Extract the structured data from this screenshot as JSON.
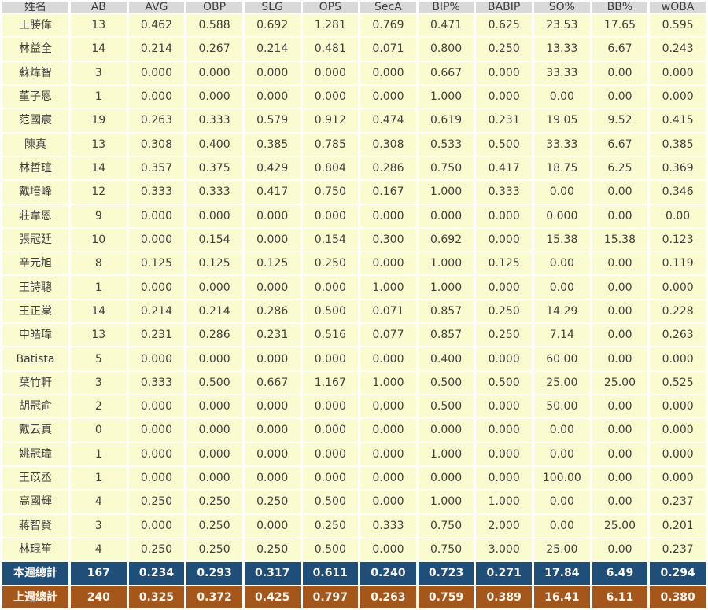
{
  "colors": {
    "header_bg": "#d9d9d9",
    "header_text": "#3f3f3f",
    "cell_bg": "#fbfbd0",
    "cell_text": "#3f3f3f",
    "week_total_bg": "#1f4e79",
    "prev_week_total_bg": "#a5561b",
    "total_text": "#fdf8ef"
  },
  "chart_data": {
    "type": "table",
    "columns": [
      "姓名",
      "AB",
      "AVG",
      "OBP",
      "SLG",
      "OPS",
      "SecA",
      "BIP%",
      "BABIP",
      "SO%",
      "BB%",
      "wOBA"
    ],
    "rows": [
      [
        "王勝偉",
        "13",
        "0.462",
        "0.588",
        "0.692",
        "1.281",
        "0.769",
        "0.471",
        "0.625",
        "23.53",
        "17.65",
        "0.595"
      ],
      [
        "林益全",
        "14",
        "0.214",
        "0.267",
        "0.214",
        "0.481",
        "0.071",
        "0.800",
        "0.250",
        "13.33",
        "6.67",
        "0.243"
      ],
      [
        "蘇煒智",
        "3",
        "0.000",
        "0.000",
        "0.000",
        "0.000",
        "0.000",
        "0.667",
        "0.000",
        "33.33",
        "0.00",
        "0.000"
      ],
      [
        "董子恩",
        "1",
        "0.000",
        "0.000",
        "0.000",
        "0.000",
        "0.000",
        "1.000",
        "0.000",
        "0.00",
        "0.00",
        "0.000"
      ],
      [
        "范國宸",
        "19",
        "0.263",
        "0.333",
        "0.579",
        "0.912",
        "0.474",
        "0.619",
        "0.231",
        "19.05",
        "9.52",
        "0.415"
      ],
      [
        "陳真",
        "13",
        "0.308",
        "0.400",
        "0.385",
        "0.785",
        "0.308",
        "0.533",
        "0.500",
        "33.33",
        "6.67",
        "0.385"
      ],
      [
        "林哲瑄",
        "14",
        "0.357",
        "0.375",
        "0.429",
        "0.804",
        "0.286",
        "0.750",
        "0.417",
        "18.75",
        "6.25",
        "0.369"
      ],
      [
        "戴培峰",
        "12",
        "0.333",
        "0.333",
        "0.417",
        "0.750",
        "0.167",
        "1.000",
        "0.333",
        "0.00",
        "0.00",
        "0.346"
      ],
      [
        "莊韋恩",
        "9",
        "0.000",
        "0.000",
        "0.000",
        "0.000",
        "0.000",
        "0.000",
        "0.000",
        "0.000",
        "0.00",
        "0.00"
      ],
      [
        "張冠廷",
        "10",
        "0.000",
        "0.154",
        "0.000",
        "0.154",
        "0.300",
        "0.692",
        "0.000",
        "15.38",
        "15.38",
        "0.123"
      ],
      [
        "辛元旭",
        "8",
        "0.125",
        "0.125",
        "0.125",
        "0.250",
        "0.000",
        "1.000",
        "0.125",
        "0.00",
        "0.00",
        "0.119"
      ],
      [
        "王詩聰",
        "1",
        "0.000",
        "0.000",
        "0.000",
        "0.000",
        "1.000",
        "1.000",
        "0.000",
        "0.00",
        "0.00",
        "0.000"
      ],
      [
        "王正棠",
        "14",
        "0.214",
        "0.214",
        "0.286",
        "0.500",
        "0.071",
        "0.857",
        "0.250",
        "14.29",
        "0.00",
        "0.228"
      ],
      [
        "申皓瑋",
        "13",
        "0.231",
        "0.286",
        "0.231",
        "0.516",
        "0.077",
        "0.857",
        "0.250",
        "7.14",
        "0.00",
        "0.263"
      ],
      [
        "Batista",
        "5",
        "0.000",
        "0.000",
        "0.000",
        "0.000",
        "0.000",
        "0.400",
        "0.000",
        "60.00",
        "0.00",
        "0.000"
      ],
      [
        "葉竹軒",
        "3",
        "0.333",
        "0.500",
        "0.667",
        "1.167",
        "1.000",
        "0.500",
        "0.500",
        "25.00",
        "25.00",
        "0.525"
      ],
      [
        "胡冠俞",
        "2",
        "0.000",
        "0.000",
        "0.000",
        "0.000",
        "0.000",
        "0.500",
        "0.000",
        "50.00",
        "0.00",
        "0.000"
      ],
      [
        "戴云真",
        "0",
        "0.000",
        "0.000",
        "0.000",
        "0.000",
        "0.000",
        "0.000",
        "0.000",
        "0.00",
        "0.00",
        "0.000"
      ],
      [
        "姚冠瑋",
        "1",
        "0.000",
        "0.000",
        "0.000",
        "0.000",
        "0.000",
        "1.000",
        "0.000",
        "0.00",
        "0.00",
        "0.000"
      ],
      [
        "王苡丞",
        "1",
        "0.000",
        "0.000",
        "0.000",
        "0.000",
        "0.000",
        "0.000",
        "0.000",
        "100.00",
        "0.00",
        "0.000"
      ],
      [
        "高國輝",
        "4",
        "0.250",
        "0.250",
        "0.250",
        "0.500",
        "0.000",
        "1.000",
        "1.000",
        "0.00",
        "0.00",
        "0.237"
      ],
      [
        "蔣智賢",
        "3",
        "0.000",
        "0.250",
        "0.000",
        "0.250",
        "0.333",
        "0.750",
        "2.000",
        "0.00",
        "25.00",
        "0.201"
      ],
      [
        "林琨笙",
        "4",
        "0.250",
        "0.250",
        "0.250",
        "0.500",
        "0.000",
        "0.750",
        "3.000",
        "25.00",
        "0.00",
        "0.237"
      ]
    ],
    "totals": [
      {
        "label": "本週總計",
        "style": "week",
        "values": [
          "167",
          "0.234",
          "0.293",
          "0.317",
          "0.611",
          "0.240",
          "0.723",
          "0.271",
          "17.84",
          "6.49",
          "0.294"
        ]
      },
      {
        "label": "上週總計",
        "style": "prev",
        "values": [
          "240",
          "0.325",
          "0.372",
          "0.425",
          "0.797",
          "0.263",
          "0.759",
          "0.389",
          "16.41",
          "6.11",
          "0.380"
        ]
      }
    ],
    "title": "",
    "legend": "none",
    "grid": "cell-separators-white"
  }
}
